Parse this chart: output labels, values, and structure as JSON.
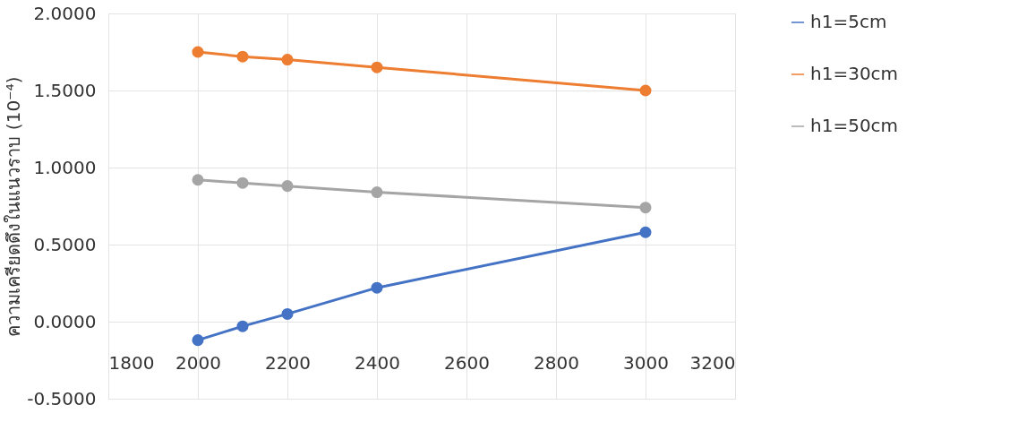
{
  "chart_data": {
    "type": "line",
    "ylabel": "ความเครียดดึงในแนวราบ (10⁻⁴)",
    "x": [
      2000,
      2100,
      2200,
      2400,
      3000
    ],
    "series": [
      {
        "name": "h1=5cm",
        "color": "#4472c4",
        "values": [
          -0.12,
          -0.03,
          0.05,
          0.22,
          0.58
        ]
      },
      {
        "name": "h1=30cm",
        "color": "#ed7d31",
        "values": [
          1.75,
          1.72,
          1.7,
          1.65,
          1.5
        ]
      },
      {
        "name": "h1=50cm",
        "color": "#a5a5a5",
        "values": [
          0.92,
          0.9,
          0.88,
          0.84,
          0.74
        ]
      }
    ],
    "xlim": [
      1800,
      3200
    ],
    "xticks": [
      1800,
      2000,
      2200,
      2400,
      2600,
      2800,
      3000,
      3200
    ],
    "ylim": [
      -0.5,
      2.0
    ],
    "yticks": [
      {
        "value": -0.5,
        "label": "-0.5000"
      },
      {
        "value": 0,
        "label": "0.0000"
      },
      {
        "value": 0.5,
        "label": "0.5000"
      },
      {
        "value": 1.0,
        "label": "1.0000"
      },
      {
        "value": 1.5,
        "label": "1.5000"
      },
      {
        "value": 2.0,
        "label": "2.0000"
      }
    ],
    "grid": true,
    "legend": "right",
    "marker": "circle",
    "line_style": "solid"
  }
}
